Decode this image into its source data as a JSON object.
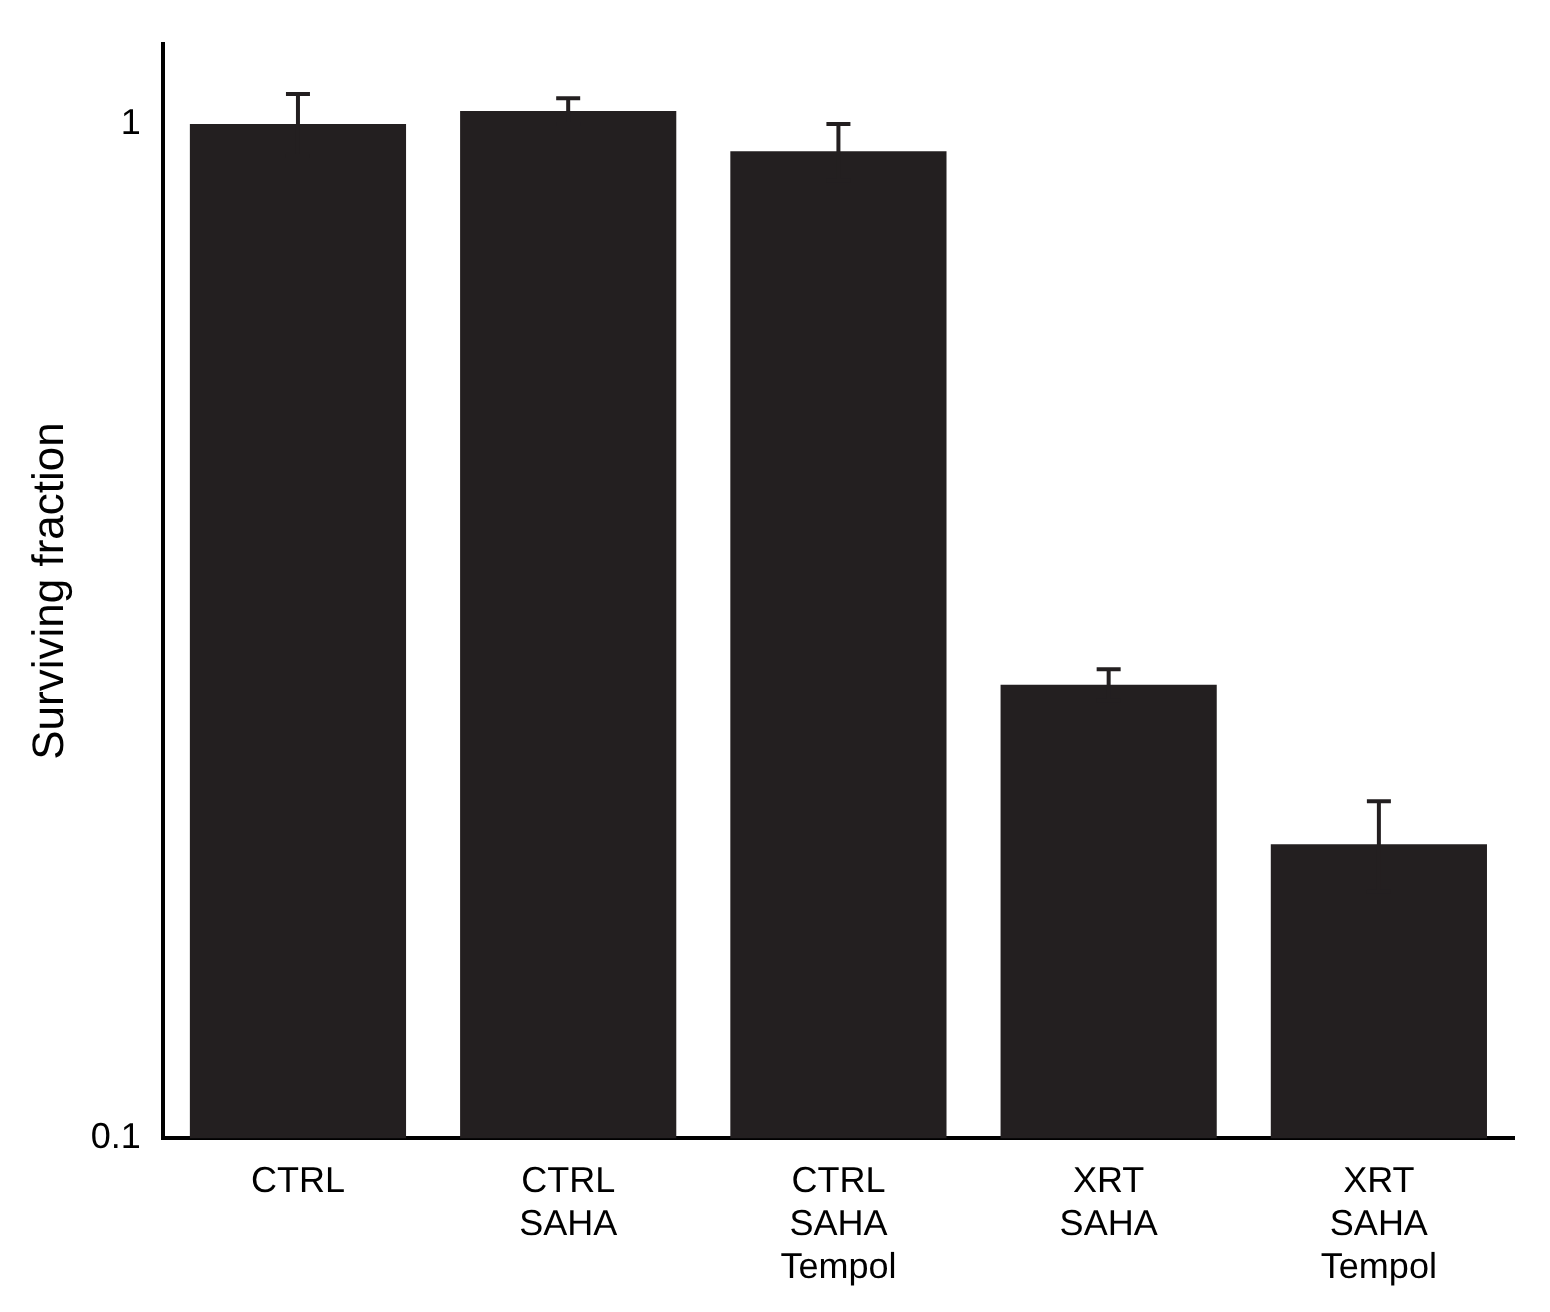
{
  "chart_data": {
    "type": "bar",
    "ylabel": "Surviving fraction",
    "categories": [
      "CTRL",
      "CTRL\nSAHA",
      "CTRL\nSAHA\nTempol",
      "XRT\nSAHA",
      "XRT\nSAHA\nTempol"
    ],
    "values": [
      1.0,
      1.03,
      0.94,
      0.28,
      0.195
    ],
    "errors": [
      0.07,
      0.03,
      0.06,
      0.01,
      0.02
    ],
    "color": "#231f20",
    "log": "y",
    "ylim": [
      0.1,
      1.2
    ],
    "yticks": [
      0.1,
      1
    ],
    "grid": false,
    "legend": false
  }
}
